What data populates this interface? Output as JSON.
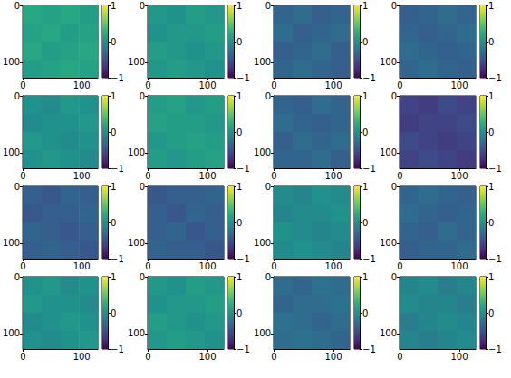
{
  "chart_data": [
    {
      "type": "heatmap",
      "xlim": [
        -0.5,
        127.5
      ],
      "ylim": [
        127.5,
        -0.5
      ],
      "xticks": [
        0,
        100
      ],
      "yticks": [
        0,
        100
      ],
      "cells": [
        [
          0.2,
          0.15,
          0.2,
          0.1
        ],
        [
          0.15,
          0.2,
          0.1,
          0.15
        ],
        [
          0.2,
          0.1,
          0.15,
          0.2
        ],
        [
          0.1,
          0.15,
          0.2,
          0.15
        ]
      ],
      "colorbar": {
        "range": [
          -1,
          1
        ],
        "ticks": [
          {
            "value": -1,
            "label": "−1"
          },
          0,
          1
        ]
      }
    },
    {
      "type": "heatmap",
      "xlim": [
        -0.5,
        127.5
      ],
      "ylim": [
        127.5,
        -0.5
      ],
      "xticks": [
        0,
        100
      ],
      "yticks": [
        0,
        100
      ],
      "cells": [
        [
          0.05,
          0.0,
          0.1,
          0.05
        ],
        [
          0.0,
          0.05,
          0.05,
          0.1
        ],
        [
          0.1,
          0.05,
          0.0,
          0.05
        ],
        [
          0.05,
          0.1,
          0.05,
          0.0
        ]
      ],
      "colorbar": {
        "range": [
          -1,
          1
        ],
        "ticks": [
          {
            "value": -1,
            "label": "−1"
          },
          0,
          1
        ]
      }
    },
    {
      "type": "heatmap",
      "xlim": [
        -0.5,
        127.5
      ],
      "ylim": [
        127.5,
        -0.5
      ],
      "xticks": [
        0,
        100
      ],
      "yticks": [
        0,
        100
      ],
      "cells": [
        [
          -0.35,
          -0.3,
          -0.4,
          -0.35
        ],
        [
          -0.3,
          -0.4,
          -0.35,
          -0.3
        ],
        [
          -0.4,
          -0.35,
          -0.3,
          -0.4
        ],
        [
          -0.35,
          -0.3,
          -0.35,
          -0.4
        ]
      ],
      "colorbar": {
        "range": [
          -1,
          1
        ],
        "ticks": [
          {
            "value": -1,
            "label": "−1"
          },
          0,
          1
        ]
      }
    },
    {
      "type": "heatmap",
      "xlim": [
        -0.5,
        127.5
      ],
      "ylim": [
        127.5,
        -0.5
      ],
      "xticks": [
        0,
        100
      ],
      "yticks": [
        0,
        100
      ],
      "cells": [
        [
          -0.4,
          -0.35,
          -0.3,
          -0.35
        ],
        [
          -0.35,
          -0.4,
          -0.35,
          -0.3
        ],
        [
          -0.3,
          -0.35,
          -0.4,
          -0.35
        ],
        [
          -0.35,
          -0.3,
          -0.35,
          -0.4
        ]
      ],
      "colorbar": {
        "range": [
          -1,
          1
        ],
        "ticks": [
          {
            "value": -1,
            "label": "−1"
          },
          0,
          1
        ]
      }
    },
    {
      "type": "heatmap",
      "xlim": [
        -0.5,
        127.5
      ],
      "ylim": [
        127.5,
        -0.5
      ],
      "xticks": [
        0,
        100
      ],
      "yticks": [
        0,
        100
      ],
      "cells": [
        [
          0.0,
          -0.05,
          0.05,
          0.0
        ],
        [
          -0.05,
          0.0,
          0.0,
          0.05
        ],
        [
          0.05,
          0.0,
          -0.05,
          0.0
        ],
        [
          0.0,
          0.05,
          0.0,
          -0.05
        ]
      ],
      "colorbar": {
        "range": [
          -1,
          1
        ],
        "ticks": [
          {
            "value": -1,
            "label": "−1"
          },
          0,
          1
        ]
      }
    },
    {
      "type": "heatmap",
      "xlim": [
        -0.5,
        127.5
      ],
      "ylim": [
        127.5,
        -0.5
      ],
      "xticks": [
        0,
        100
      ],
      "yticks": [
        0,
        100
      ],
      "cells": [
        [
          0.1,
          0.15,
          0.05,
          0.1
        ],
        [
          0.15,
          0.1,
          0.1,
          0.05
        ],
        [
          0.05,
          0.1,
          0.15,
          0.1
        ],
        [
          0.1,
          0.05,
          0.1,
          0.15
        ]
      ],
      "colorbar": {
        "range": [
          -1,
          1
        ],
        "ticks": [
          {
            "value": -1,
            "label": "−1"
          },
          0,
          1
        ]
      }
    },
    {
      "type": "heatmap",
      "xlim": [
        -0.5,
        127.5
      ],
      "ylim": [
        127.5,
        -0.5
      ],
      "xticks": [
        0,
        100
      ],
      "yticks": [
        0,
        100
      ],
      "cells": [
        [
          -0.35,
          -0.4,
          -0.3,
          -0.35
        ],
        [
          -0.3,
          -0.35,
          -0.4,
          -0.35
        ],
        [
          -0.4,
          -0.3,
          -0.35,
          -0.3
        ],
        [
          -0.35,
          -0.35,
          -0.3,
          -0.4
        ]
      ],
      "colorbar": {
        "range": [
          -1,
          1
        ],
        "ticks": [
          {
            "value": -1,
            "label": "−1"
          },
          0,
          1
        ]
      }
    },
    {
      "type": "heatmap",
      "xlim": [
        -0.5,
        127.5
      ],
      "ylim": [
        127.5,
        -0.5
      ],
      "xticks": [
        0,
        100
      ],
      "yticks": [
        0,
        100
      ],
      "cells": [
        [
          -0.6,
          -0.65,
          -0.55,
          -0.6
        ],
        [
          -0.65,
          -0.6,
          -0.6,
          -0.55
        ],
        [
          -0.55,
          -0.6,
          -0.65,
          -0.6
        ],
        [
          -0.6,
          -0.55,
          -0.6,
          -0.65
        ]
      ],
      "colorbar": {
        "range": [
          -1,
          1
        ],
        "ticks": [
          {
            "value": -1,
            "label": "−1"
          },
          0,
          1
        ]
      }
    },
    {
      "type": "heatmap",
      "xlim": [
        -0.5,
        127.5
      ],
      "ylim": [
        127.5,
        -0.5
      ],
      "xticks": [
        0,
        100
      ],
      "yticks": [
        0,
        100
      ],
      "cells": [
        [
          -0.4,
          -0.45,
          -0.35,
          -0.4
        ],
        [
          -0.45,
          -0.4,
          -0.4,
          -0.35
        ],
        [
          -0.35,
          -0.4,
          -0.45,
          -0.4
        ],
        [
          -0.4,
          -0.35,
          -0.4,
          -0.45
        ]
      ],
      "colorbar": {
        "range": [
          -1,
          1
        ],
        "ticks": [
          {
            "value": -1,
            "label": "−1"
          },
          0,
          1
        ]
      }
    },
    {
      "type": "heatmap",
      "xlim": [
        -0.5,
        127.5
      ],
      "ylim": [
        127.5,
        -0.5
      ],
      "xticks": [
        0,
        100
      ],
      "yticks": [
        0,
        100
      ],
      "cells": [
        [
          -0.45,
          -0.4,
          -0.4,
          -0.35
        ],
        [
          -0.4,
          -0.45,
          -0.35,
          -0.4
        ],
        [
          -0.4,
          -0.35,
          -0.45,
          -0.4
        ],
        [
          -0.35,
          -0.4,
          -0.4,
          -0.45
        ]
      ],
      "colorbar": {
        "range": [
          -1,
          1
        ],
        "ticks": [
          {
            "value": -1,
            "label": "−1"
          },
          0,
          1
        ]
      }
    },
    {
      "type": "heatmap",
      "xlim": [
        -0.5,
        127.5
      ],
      "ylim": [
        127.5,
        -0.5
      ],
      "xticks": [
        0,
        100
      ],
      "yticks": [
        0,
        100
      ],
      "cells": [
        [
          -0.05,
          -0.1,
          0.0,
          -0.05
        ],
        [
          -0.1,
          -0.05,
          -0.05,
          0.0
        ],
        [
          0.0,
          -0.05,
          -0.1,
          -0.05
        ],
        [
          -0.05,
          0.0,
          -0.05,
          -0.1
        ]
      ],
      "colorbar": {
        "range": [
          -1,
          1
        ],
        "ticks": [
          {
            "value": -1,
            "label": "−1"
          },
          0,
          1
        ]
      }
    },
    {
      "type": "heatmap",
      "xlim": [
        -0.5,
        127.5
      ],
      "ylim": [
        127.5,
        -0.5
      ],
      "xticks": [
        0,
        100
      ],
      "yticks": [
        0,
        100
      ],
      "cells": [
        [
          -0.35,
          -0.3,
          -0.35,
          -0.4
        ],
        [
          -0.3,
          -0.35,
          -0.4,
          -0.35
        ],
        [
          -0.35,
          -0.4,
          -0.3,
          -0.35
        ],
        [
          -0.4,
          -0.35,
          -0.35,
          -0.3
        ]
      ],
      "colorbar": {
        "range": [
          -1,
          1
        ],
        "ticks": [
          {
            "value": -1,
            "label": "−1"
          },
          0,
          1
        ]
      }
    },
    {
      "type": "heatmap",
      "xlim": [
        -0.5,
        127.5
      ],
      "ylim": [
        127.5,
        -0.5
      ],
      "xticks": [
        0,
        100
      ],
      "yticks": [
        0,
        100
      ],
      "cells": [
        [
          0.0,
          0.05,
          -0.05,
          0.0
        ],
        [
          0.05,
          0.0,
          0.0,
          -0.05
        ],
        [
          -0.05,
          0.0,
          0.05,
          0.0
        ],
        [
          0.0,
          -0.05,
          0.0,
          0.05
        ]
      ],
      "colorbar": {
        "range": [
          -1,
          1
        ],
        "ticks": [
          {
            "value": -1,
            "label": "−1"
          },
          0,
          1
        ]
      }
    },
    {
      "type": "heatmap",
      "xlim": [
        -0.5,
        127.5
      ],
      "ylim": [
        127.5,
        -0.5
      ],
      "xticks": [
        0,
        100
      ],
      "yticks": [
        0,
        100
      ],
      "cells": [
        [
          0.05,
          0.0,
          0.1,
          0.05
        ],
        [
          0.0,
          0.05,
          0.05,
          0.1
        ],
        [
          0.1,
          0.05,
          0.0,
          0.05
        ],
        [
          0.05,
          0.1,
          0.05,
          0.0
        ]
      ],
      "colorbar": {
        "range": [
          -1,
          1
        ],
        "ticks": [
          {
            "value": -1,
            "label": "−1"
          },
          0,
          1
        ]
      }
    },
    {
      "type": "heatmap",
      "xlim": [
        -0.5,
        127.5
      ],
      "ylim": [
        127.5,
        -0.5
      ],
      "xticks": [
        0,
        100
      ],
      "yticks": [
        0,
        100
      ],
      "cells": [
        [
          -0.3,
          -0.35,
          -0.25,
          -0.3
        ],
        [
          -0.35,
          -0.3,
          -0.3,
          -0.25
        ],
        [
          -0.25,
          -0.3,
          -0.35,
          -0.3
        ],
        [
          -0.3,
          -0.25,
          -0.3,
          -0.35
        ]
      ],
      "colorbar": {
        "range": [
          -1,
          1
        ],
        "ticks": [
          {
            "value": -1,
            "label": "−1"
          },
          0,
          1
        ]
      }
    },
    {
      "type": "heatmap",
      "xlim": [
        -0.5,
        127.5
      ],
      "ylim": [
        127.5,
        -0.5
      ],
      "xticks": [
        0,
        100
      ],
      "yticks": [
        0,
        100
      ],
      "cells": [
        [
          -0.1,
          -0.05,
          -0.15,
          -0.1
        ],
        [
          -0.05,
          -0.1,
          -0.1,
          -0.15
        ],
        [
          -0.15,
          -0.1,
          -0.05,
          -0.1
        ],
        [
          -0.1,
          -0.15,
          -0.1,
          -0.05
        ]
      ],
      "colorbar": {
        "range": [
          -1,
          1
        ],
        "ticks": [
          {
            "value": -1,
            "label": "−1"
          },
          0,
          1
        ]
      }
    }
  ]
}
